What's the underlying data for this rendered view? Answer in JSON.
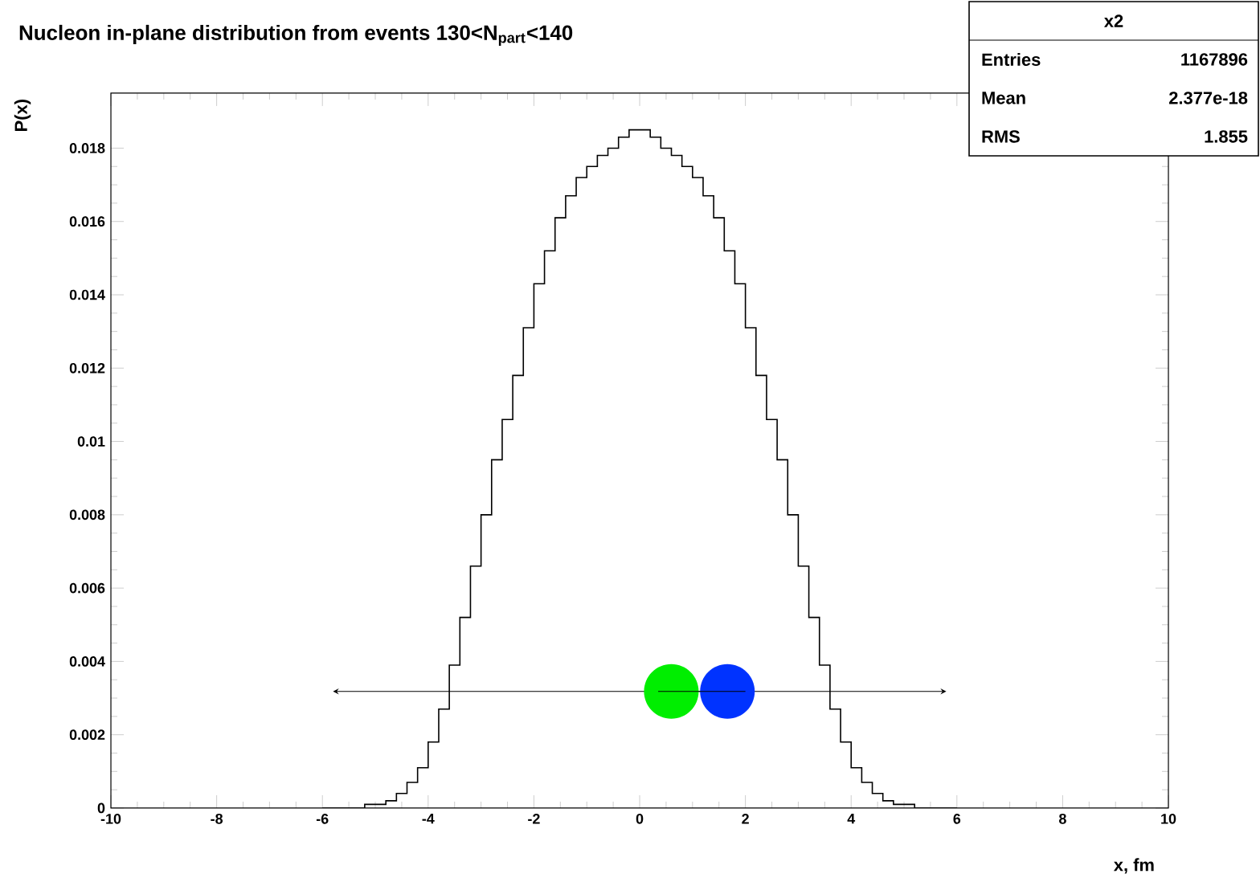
{
  "chart_data": {
    "type": "histogram",
    "title": "Nucleon in-plane distribution from events 130<N$_{part}$<140",
    "xlabel": "x, fm",
    "ylabel": "P(x)",
    "bins": [
      -6.0,
      -5.8,
      -5.6,
      -5.4,
      -5.2,
      -5.0,
      -4.8,
      -4.6,
      -4.4,
      -4.2,
      -4.0,
      -3.8,
      -3.6,
      -3.4,
      -3.2,
      -3.0,
      -2.8,
      -2.6,
      -2.4,
      -2.2,
      -2.0,
      -1.8,
      -1.6,
      -1.4,
      -1.2,
      -1.0,
      -0.8,
      -0.6,
      -0.4,
      -0.2,
      0.0,
      0.2,
      0.4,
      0.6,
      0.8,
      1.0,
      1.2,
      1.4,
      1.6,
      1.8,
      2.0,
      2.2,
      2.4,
      2.6,
      2.8,
      3.0,
      3.2,
      3.4,
      3.6,
      3.8,
      4.0,
      4.2,
      4.4,
      4.6,
      4.8,
      5.0,
      5.2,
      5.4,
      5.6,
      5.8,
      6.0
    ],
    "values": [
      0,
      0,
      0,
      0,
      0.0001,
      0.0001,
      0.0002,
      0.0004,
      0.0007,
      0.0011,
      0.0018,
      0.0027,
      0.0039,
      0.0052,
      0.0066,
      0.008,
      0.0095,
      0.0106,
      0.0118,
      0.0131,
      0.0143,
      0.0152,
      0.0161,
      0.0167,
      0.0172,
      0.0175,
      0.0178,
      0.018,
      0.0183,
      0.0185,
      0.0185,
      0.0183,
      0.018,
      0.0178,
      0.0175,
      0.0172,
      0.0167,
      0.0161,
      0.0152,
      0.0143,
      0.0131,
      0.0118,
      0.0106,
      0.0095,
      0.008,
      0.0066,
      0.0052,
      0.0039,
      0.0027,
      0.0018,
      0.0011,
      0.0007,
      0.0004,
      0.0002,
      0.0001,
      0.0001,
      0,
      0,
      0,
      0
    ],
    "color": "#000000",
    "xlim": [
      -10,
      10
    ],
    "ylim": [
      0,
      0.0195
    ],
    "xticks": [
      -10,
      -8,
      -6,
      -4,
      -2,
      0,
      2,
      4,
      6,
      8,
      10
    ],
    "yticks": [
      0,
      0.002,
      0.004,
      0.006,
      0.008,
      0.01,
      0.012,
      0.014,
      0.016,
      0.018
    ],
    "grid": false,
    "annotations": [
      "x2",
      "Entries",
      "1167896",
      "Mean",
      "2.377e-18",
      "RMS",
      "1.855"
    ]
  }
}
